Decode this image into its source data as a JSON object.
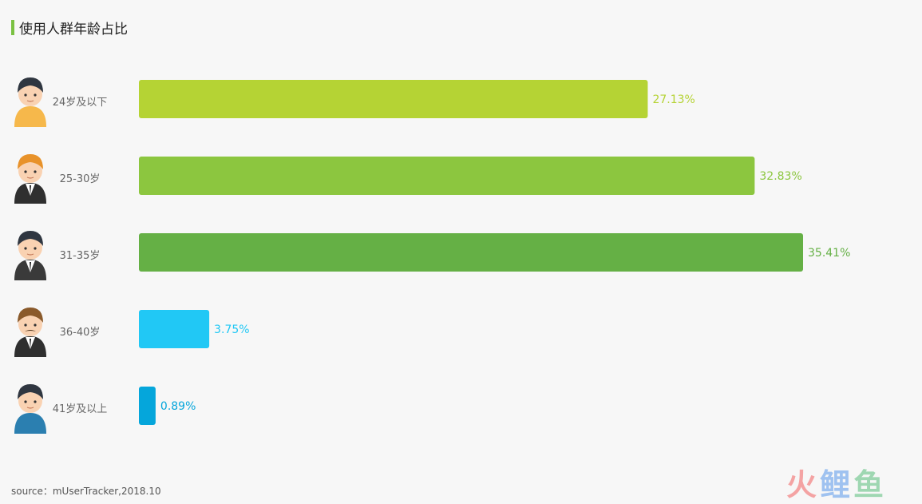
{
  "title": "使用人群年龄占比",
  "source": "source：mUserTracker,2018.10",
  "watermark": {
    "text": [
      "火",
      "鲤",
      "鱼"
    ],
    "colors": [
      "#f4a3a3",
      "#9fc2f0",
      "#9fd7b2"
    ]
  },
  "chart_data": {
    "type": "bar",
    "orientation": "horizontal",
    "categories": [
      "24岁及以下",
      "25-30岁",
      "31-35岁",
      "36-40岁",
      "41岁及以上"
    ],
    "values": [
      27.13,
      32.83,
      35.41,
      3.75,
      0.89
    ],
    "value_labels": [
      "27.13%",
      "32.83%",
      "35.41%",
      "3.75%",
      "0.89%"
    ],
    "unit": "%",
    "colors": [
      "#b5d334",
      "#8cc63f",
      "#65b045",
      "#21c8f5",
      "#05a6db"
    ],
    "icons": [
      "young-boy-icon",
      "orange-hair-man-icon",
      "businessman-icon",
      "mustache-man-icon",
      "older-man-icon"
    ],
    "grid": false,
    "legend": "none"
  }
}
